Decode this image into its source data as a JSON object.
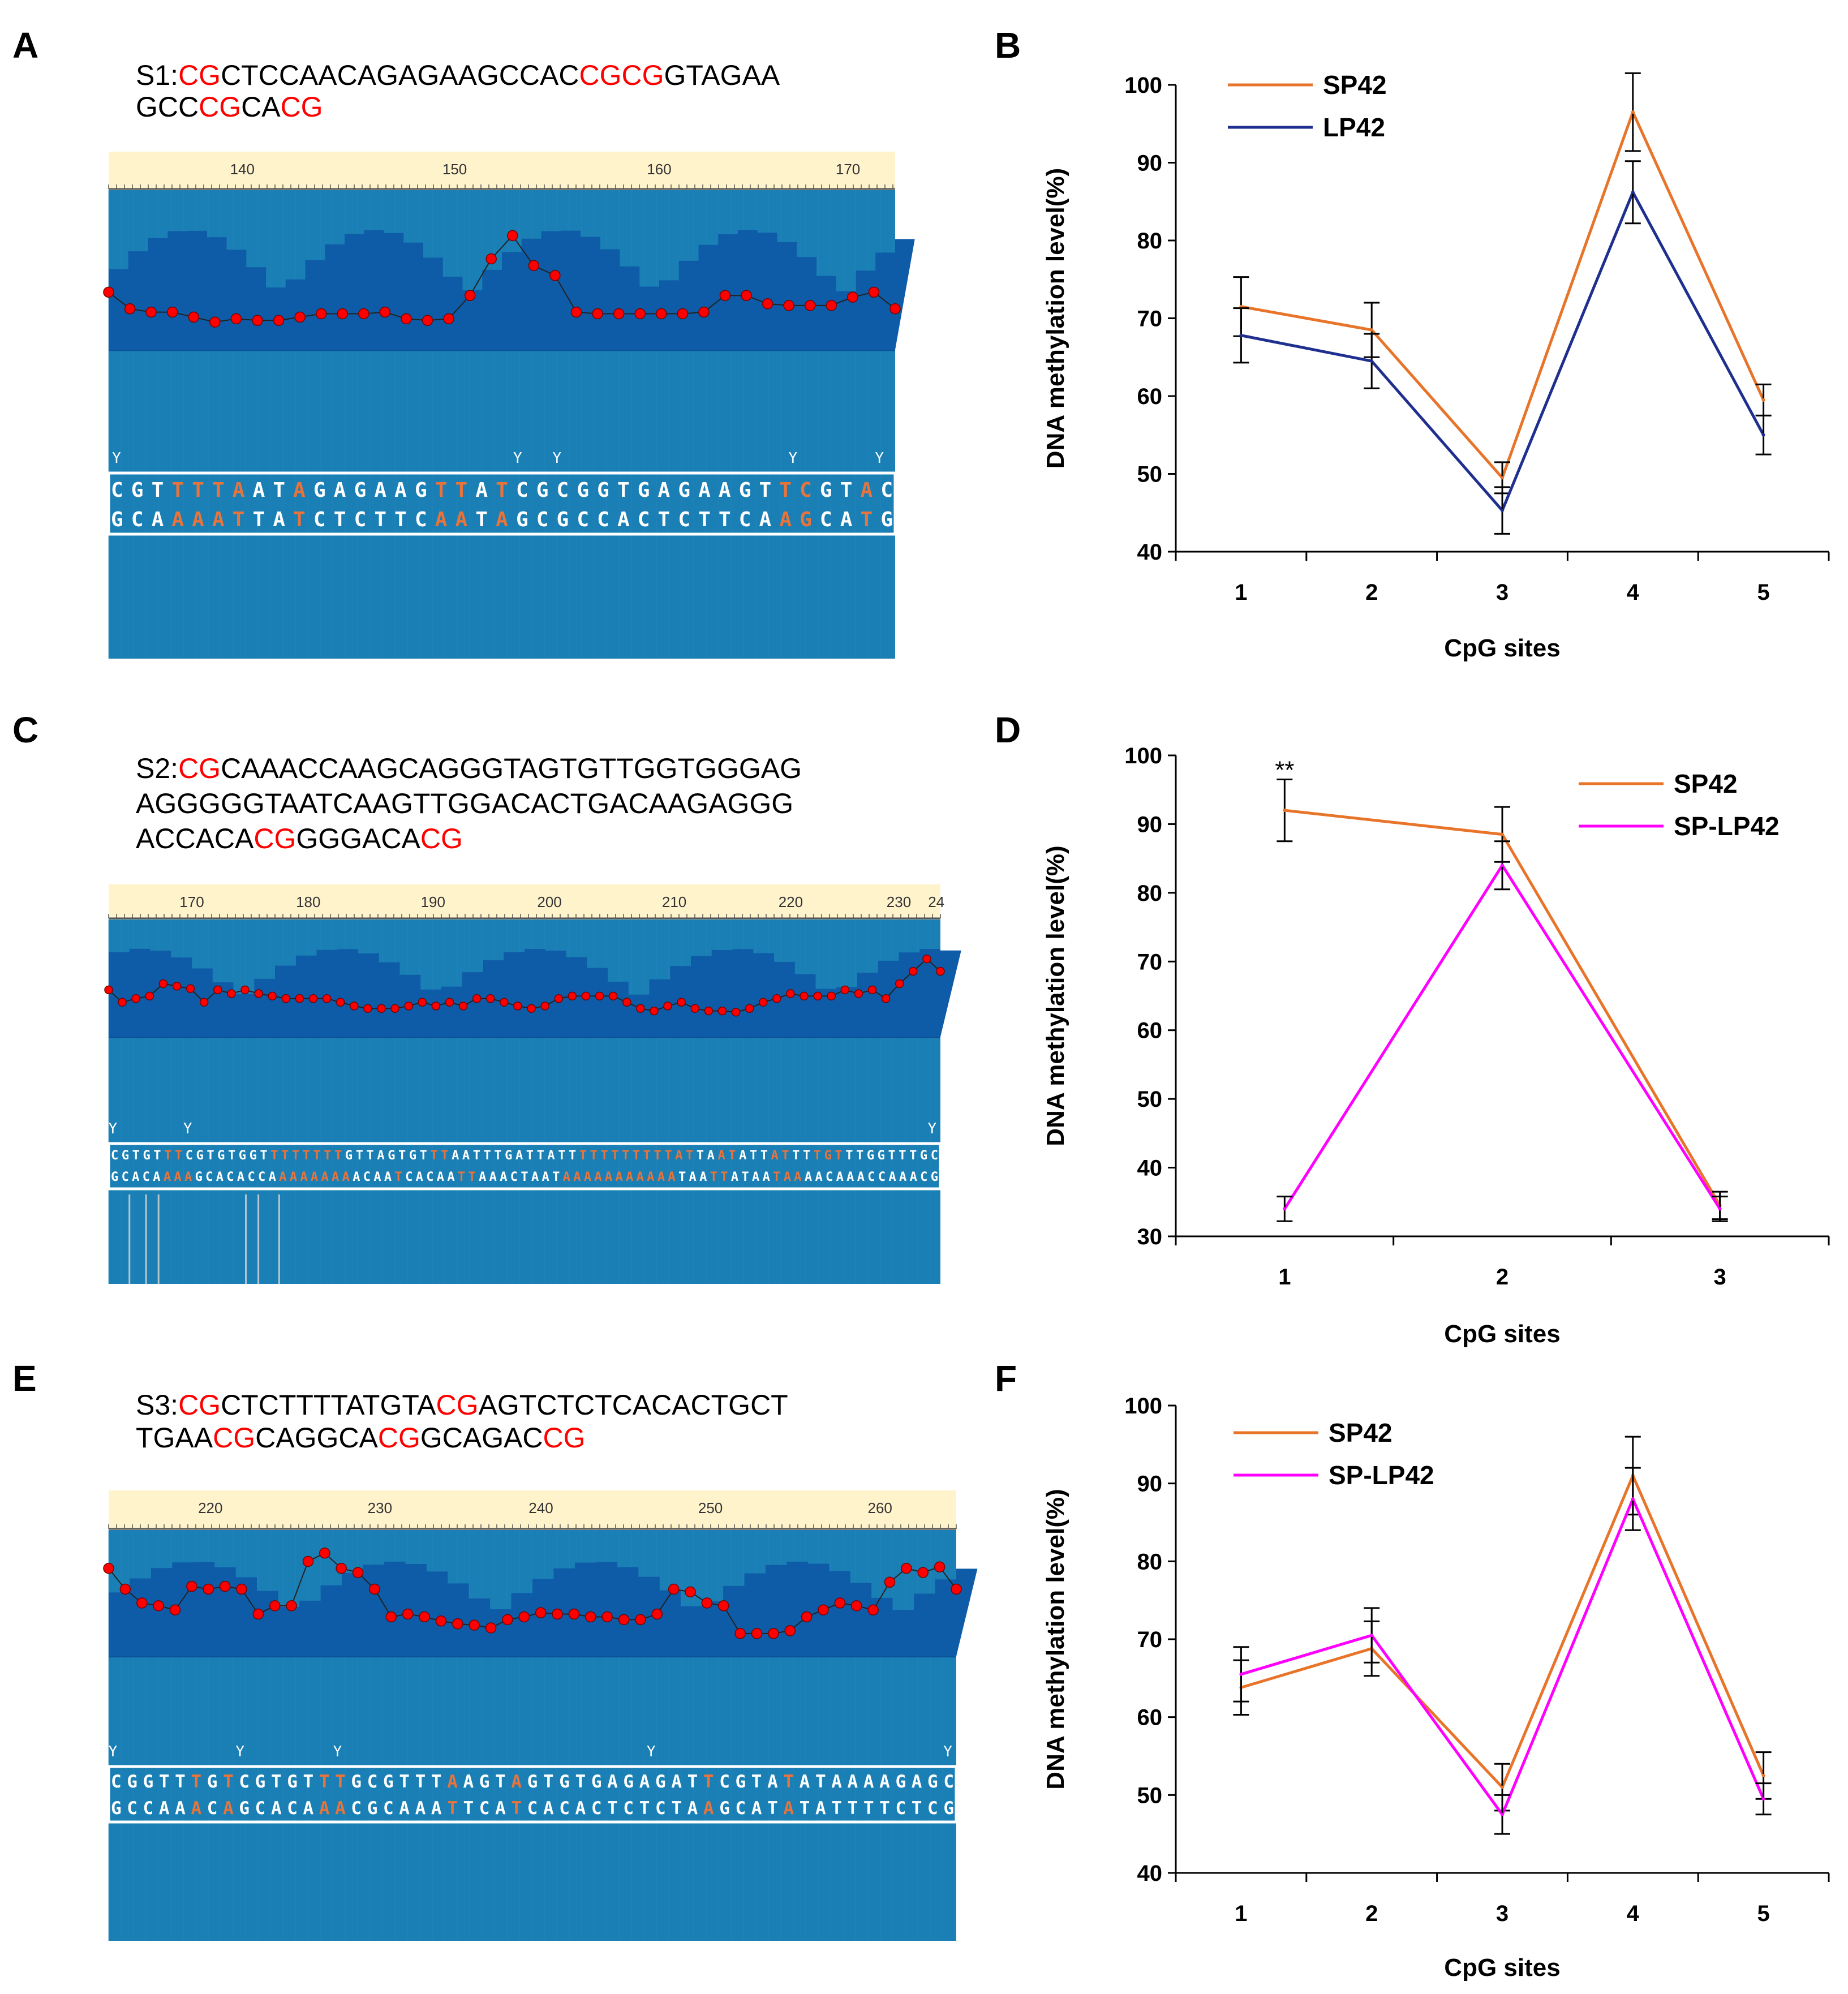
{
  "panels": {
    "A": {
      "label": "A",
      "seq_lines": [
        [
          {
            "t": "S1:",
            "cg": false
          },
          {
            "t": "CG",
            "cg": true
          },
          {
            "t": "CTCCAACAGAGAAGCCAC",
            "cg": false
          },
          {
            "t": "CGCG",
            "cg": true
          },
          {
            "t": "GTAGAA",
            "cg": false
          }
        ],
        [
          {
            "t": "GCC",
            "cg": false
          },
          {
            "t": "CG",
            "cg": true
          },
          {
            "t": "CA",
            "cg": false
          },
          {
            "t": "CG",
            "cg": true
          }
        ]
      ],
      "ruler_labels": [
        "140",
        "150",
        "160",
        "170"
      ],
      "y_marks": [
        "Y",
        "Y",
        "Y",
        "Y",
        "Y"
      ],
      "trace_values": [
        60,
        50,
        48,
        48,
        45,
        42,
        44,
        43,
        43,
        45,
        47,
        47,
        47,
        48,
        44,
        43,
        44,
        58,
        80,
        94,
        76,
        70,
        48,
        47,
        47,
        47,
        47,
        47,
        48,
        58,
        58,
        53,
        52,
        52,
        52,
        57,
        60,
        50
      ],
      "dna_top": "CGTTTTAATAGAGAAGTTATCGCGGTGAGAAGTTCGTAC",
      "dna_top_conv": [
        3,
        4,
        5,
        6,
        9,
        16,
        17,
        19,
        33,
        34,
        37
      ],
      "dna_bottom": "GCAAAATTATCTCTTCAATAGCGCCACTCTTCAAGCATG",
      "dna_bottom_conv": [
        3,
        4,
        5,
        6,
        9,
        16,
        17,
        19,
        33,
        34,
        37
      ]
    },
    "C": {
      "label": "C",
      "seq_lines": [
        [
          {
            "t": "S2:",
            "cg": false
          },
          {
            "t": "CG",
            "cg": true
          },
          {
            "t": "CAAACCAAGCAGGGTAGTGTTGGTGGGAG",
            "cg": false
          }
        ],
        [
          {
            "t": "AGGGGGTAATCAAGTTGGACACTGACAAGAGGG",
            "cg": false
          }
        ],
        [
          {
            "t": "ACCACA",
            "cg": false
          },
          {
            "t": "CG",
            "cg": true
          },
          {
            "t": "GGGACA",
            "cg": false
          },
          {
            "t": "CG",
            "cg": true
          }
        ]
      ],
      "ruler_labels": [
        "170",
        "180",
        "190",
        "200",
        "210",
        "220",
        "230",
        "24"
      ],
      "y_marks": [
        "Y",
        "Y",
        "Y"
      ],
      "trace_values": [
        55,
        45,
        48,
        50,
        60,
        58,
        56,
        45,
        55,
        52,
        55,
        52,
        50,
        48,
        48,
        48,
        48,
        45,
        42,
        40,
        40,
        40,
        42,
        45,
        42,
        45,
        42,
        48,
        48,
        45,
        42,
        40,
        42,
        48,
        50,
        50,
        50,
        50,
        45,
        40,
        38,
        42,
        45,
        40,
        38,
        38,
        37,
        40,
        45,
        48,
        52,
        50,
        50,
        50,
        55,
        52,
        55,
        48,
        60,
        70,
        80,
        70
      ],
      "dna_top": "CGTGTTTCGTGTGGTTTTTTTTGTTAGTGTTTAATTTGATTATTTTTTTTTTTATTAATATTATTTTGTTTGGTTTGC",
      "dna_top_conv": [
        5,
        6,
        15,
        16,
        17,
        18,
        19,
        20,
        21,
        30,
        31,
        44,
        45,
        46,
        47,
        48,
        49,
        50,
        51,
        52,
        53,
        54,
        57,
        58,
        62,
        63,
        66,
        67,
        68
      ],
      "dna_bottom": "GCACAAAAGCACACCAAAAAAAAACAATCACAATTAAACTAATAAAAAAAAAAATAATTATAATAAAACAAACCAAACG",
      "dna_bottom_conv": [
        5,
        6,
        7,
        16,
        17,
        18,
        19,
        20,
        21,
        22,
        27,
        33,
        34,
        43,
        44,
        45,
        46,
        47,
        48,
        49,
        50,
        51,
        52,
        53,
        57,
        58,
        63,
        64,
        65
      ]
    },
    "E": {
      "label": "E",
      "seq_lines": [
        [
          {
            "t": "S3:",
            "cg": false
          },
          {
            "t": "CG",
            "cg": true
          },
          {
            "t": "CTCTTTTATGTA",
            "cg": false
          },
          {
            "t": "CG",
            "cg": true
          },
          {
            "t": "AGTCTCTCACACTGCT",
            "cg": false
          }
        ],
        [
          {
            "t": "TGAA",
            "cg": false
          },
          {
            "t": "CG",
            "cg": true
          },
          {
            "t": "CAGGCA",
            "cg": false
          },
          {
            "t": "CG",
            "cg": true
          },
          {
            "t": "GCAGAC",
            "cg": false
          },
          {
            "t": "CG",
            "cg": true
          }
        ]
      ],
      "ruler_labels": [
        "220",
        "230",
        "240",
        "250",
        "260"
      ],
      "y_marks": [
        "Y",
        "Y",
        "Y",
        "Y",
        "Y"
      ],
      "trace_values": [
        85,
        70,
        60,
        58,
        55,
        72,
        70,
        72,
        70,
        52,
        58,
        58,
        90,
        96,
        85,
        82,
        70,
        50,
        52,
        50,
        47,
        45,
        44,
        42,
        48,
        50,
        53,
        52,
        52,
        50,
        50,
        48,
        48,
        52,
        70,
        68,
        60,
        58,
        38,
        38,
        38,
        40,
        50,
        55,
        60,
        58,
        55,
        75,
        85,
        82,
        86,
        70
      ],
      "dna_top": "CGGTTTGTCGTGTTTGCGTTTAAGTAGTGTGAGAGATTCGTATATAAAAGAGC",
      "dna_top_conv": [
        5,
        7,
        13,
        14,
        21,
        25,
        37,
        42
      ],
      "dna_bottom": "GCCAAACAGCACAAACGCAAATTCATCACACTCTCTAAGCATATATTTTCTCG",
      "dna_bottom_conv": [
        5,
        7,
        13,
        14,
        21,
        25,
        37,
        42
      ]
    },
    "B": {
      "label": "B"
    },
    "D": {
      "label": "D"
    },
    "F": {
      "label": "F"
    }
  },
  "colors": {
    "sp42": "#e8742a",
    "lp42": "#1f2f8f",
    "splp42": "#ff00ff",
    "seq_cg": "#ff0000",
    "ruler_bg": "#fff3cc",
    "track_light": "#1a7fb4",
    "track_dark": "#0e5ca8",
    "marker": "#ff0000"
  },
  "chart_data": [
    {
      "panel": "B",
      "type": "line",
      "categories": [
        "1",
        "2",
        "3",
        "4",
        "5"
      ],
      "series": [
        {
          "name": "SP42",
          "color_key": "sp42",
          "values": [
            71.5,
            68.5,
            49.5,
            96.5,
            59.5
          ],
          "errors": [
            3.8,
            3.5,
            2.0,
            5.0,
            2.0
          ]
        },
        {
          "name": "LP42",
          "color_key": "lp42",
          "values": [
            67.8,
            64.5,
            45.3,
            86.2,
            55.0
          ],
          "errors": [
            3.5,
            3.5,
            3.0,
            4.0,
            2.5
          ]
        }
      ],
      "title": "",
      "xlabel": "CpG sites",
      "ylabel": "DNA methylation  level(%)",
      "ylim": [
        40,
        100
      ],
      "yticks": [
        40,
        50,
        60,
        70,
        80,
        90,
        100
      ],
      "annotations": [],
      "legend_position": "top-left"
    },
    {
      "panel": "D",
      "type": "line",
      "categories": [
        "1",
        "2",
        "3"
      ],
      "series": [
        {
          "name": "SP42",
          "color_key": "sp42",
          "values": [
            92.0,
            88.5,
            34.5
          ],
          "errors": [
            4.5,
            4.0,
            2.0
          ]
        },
        {
          "name": "SP-LP42",
          "color_key": "splp42",
          "values": [
            34.0,
            84.0,
            34.0
          ],
          "errors": [
            1.8,
            3.5,
            1.8
          ]
        }
      ],
      "title": "",
      "xlabel": "CpG sites",
      "ylabel": "DNA methylation  level(%)",
      "ylim": [
        30,
        100
      ],
      "yticks": [
        30,
        40,
        50,
        60,
        70,
        80,
        90,
        100
      ],
      "annotations": [
        {
          "text": "**",
          "category": "1",
          "y": 97.5
        }
      ],
      "legend_position": "top-right"
    },
    {
      "panel": "F",
      "type": "line",
      "categories": [
        "1",
        "2",
        "3",
        "4",
        "5"
      ],
      "series": [
        {
          "name": "SP42",
          "color_key": "sp42",
          "values": [
            63.8,
            68.8,
            51.0,
            91.0,
            52.5
          ],
          "errors": [
            3.5,
            3.5,
            3.0,
            5.0,
            3.0
          ]
        },
        {
          "name": "SP-LP42",
          "color_key": "splp42",
          "values": [
            65.5,
            70.5,
            47.5,
            88.0,
            49.5
          ],
          "errors": [
            3.5,
            3.5,
            2.5,
            4.0,
            2.0
          ]
        }
      ],
      "title": "",
      "xlabel": "CpG sites",
      "ylabel": "DNA methylation  level(%)",
      "ylim": [
        40,
        100
      ],
      "yticks": [
        40,
        50,
        60,
        70,
        80,
        90,
        100
      ],
      "annotations": [],
      "legend_position": "top-left"
    }
  ]
}
